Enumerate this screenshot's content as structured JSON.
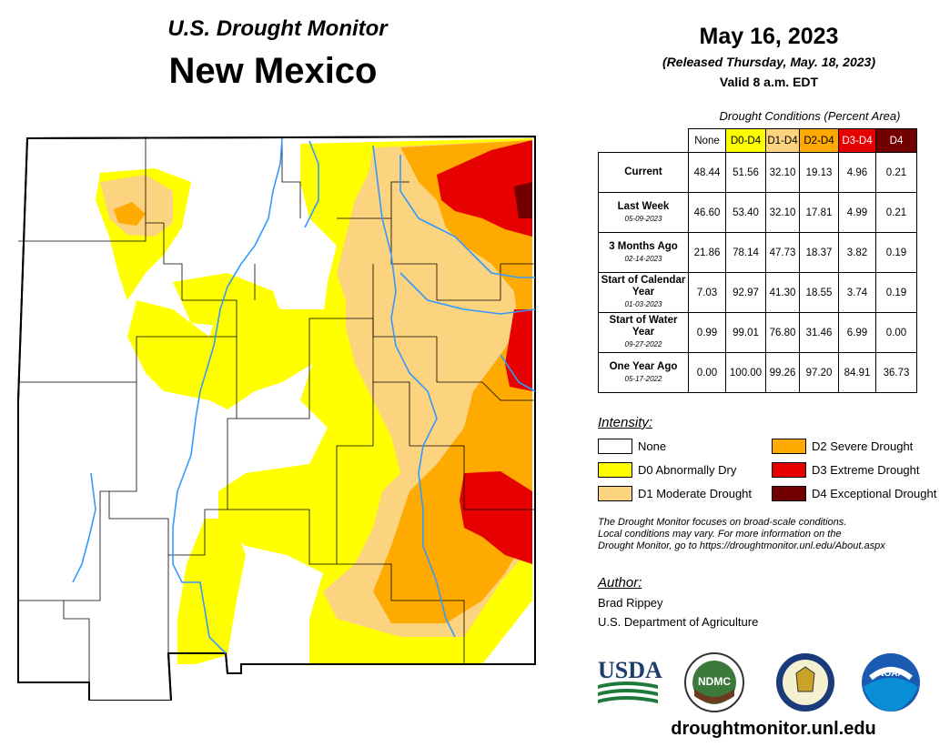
{
  "header": {
    "title_top": "U.S. Drought Monitor",
    "title_state": "New Mexico",
    "date": "May 16, 2023",
    "released": "(Released Thursday, May. 18, 2023)",
    "valid": "Valid 8 a.m. EDT"
  },
  "table": {
    "caption": "Drought Conditions (Percent Area)",
    "columns": [
      "None",
      "D0-D4",
      "D1-D4",
      "D2-D4",
      "D3-D4",
      "D4"
    ],
    "rows": [
      {
        "label": "Current",
        "date": "",
        "values": [
          "48.44",
          "51.56",
          "32.10",
          "19.13",
          "4.96",
          "0.21"
        ]
      },
      {
        "label": "Last Week",
        "date": "05-09-2023",
        "values": [
          "46.60",
          "53.40",
          "32.10",
          "17.81",
          "4.99",
          "0.21"
        ]
      },
      {
        "label": "3 Months Ago",
        "date": "02-14-2023",
        "values": [
          "21.86",
          "78.14",
          "47.73",
          "18.37",
          "3.82",
          "0.19"
        ]
      },
      {
        "label": "Start of Calendar Year",
        "date": "01-03-2023",
        "values": [
          "7.03",
          "92.97",
          "41.30",
          "18.55",
          "3.74",
          "0.19"
        ]
      },
      {
        "label": "Start of Water Year",
        "date": "09-27-2022",
        "values": [
          "0.99",
          "99.01",
          "76.80",
          "31.46",
          "6.99",
          "0.00"
        ]
      },
      {
        "label": "One Year Ago",
        "date": "05-17-2022",
        "values": [
          "0.00",
          "100.00",
          "99.26",
          "97.20",
          "84.91",
          "36.73"
        ]
      }
    ]
  },
  "legend": {
    "heading": "Intensity:",
    "items": [
      {
        "label": "None",
        "color": "#ffffff"
      },
      {
        "label": "D0 Abnormally Dry",
        "color": "#ffff00"
      },
      {
        "label": "D1 Moderate Drought",
        "color": "#fcd37f"
      },
      {
        "label": "D2 Severe Drought",
        "color": "#ffaa00"
      },
      {
        "label": "D3 Extreme Drought",
        "color": "#e60000"
      },
      {
        "label": "D4 Exceptional Drought",
        "color": "#730000"
      }
    ]
  },
  "note": {
    "line1": "The Drought Monitor focuses on broad-scale conditions.",
    "line2": "Local conditions may vary. For more information on the",
    "line3": "Drought Monitor, go to https://droughtmonitor.unl.edu/About.aspx"
  },
  "author": {
    "heading": "Author:",
    "name": "Brad Rippey",
    "org": "U.S. Department of Agriculture"
  },
  "logos": {
    "usda": "USDA",
    "ndmc": "NDMC",
    "noaa": "NOAA"
  },
  "url": "droughtmonitor.unl.edu",
  "colors": {
    "none": "#ffffff",
    "d0": "#ffff00",
    "d1": "#fcd37f",
    "d2": "#ffaa00",
    "d3": "#e60000",
    "d4": "#730000",
    "river": "#3399ff"
  }
}
